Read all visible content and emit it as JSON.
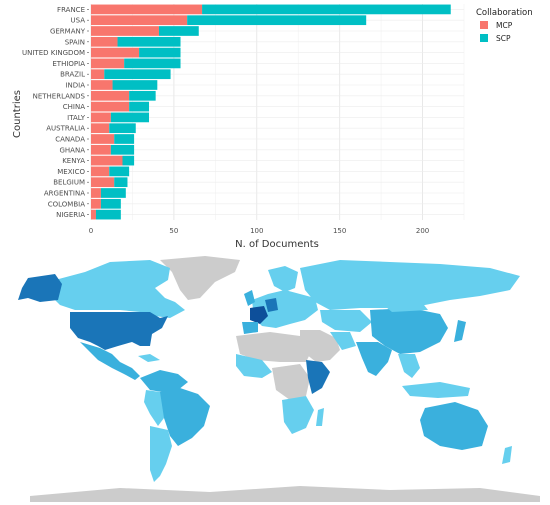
{
  "chart_data": {
    "type": "bar",
    "orientation": "horizontal",
    "stacked": true,
    "categories": [
      "FRANCE",
      "USA",
      "GERMANY",
      "SPAIN",
      "UNITED KINGDOM",
      "ETHIOPIA",
      "BRAZIL",
      "INDIA",
      "NETHERLANDS",
      "CHINA",
      "ITALY",
      "AUSTRALIA",
      "CANADA",
      "GHANA",
      "KENYA",
      "MEXICO",
      "BELGIUM",
      "ARGENTINA",
      "COLOMBIA",
      "NIGERIA"
    ],
    "series": [
      {
        "name": "MCP",
        "color": "#f8766d",
        "values": [
          67,
          58,
          41,
          16,
          29,
          20,
          8,
          13,
          23,
          23,
          12,
          11,
          14,
          12,
          19,
          11,
          14,
          6,
          6,
          3
        ]
      },
      {
        "name": "SCP",
        "color": "#00bfc4",
        "values": [
          150,
          108,
          24,
          38,
          25,
          34,
          40,
          27,
          16,
          12,
          23,
          16,
          12,
          14,
          7,
          12,
          8,
          15,
          12,
          15
        ]
      }
    ],
    "xlabel": "N. of Documents",
    "ylabel": "Countries",
    "xlim": [
      0,
      225
    ],
    "xticks": [
      0,
      50,
      100,
      150,
      200
    ],
    "legend_title": "Collaboration",
    "legend_position": "right",
    "grid": true
  },
  "map": {
    "type": "choropleth",
    "description_colors": {
      "no_data": "#cccccc",
      "low": "#66cfee",
      "mid": "#3ab0dd",
      "high": "#1a75b8",
      "max": "#0d4f9a"
    }
  }
}
